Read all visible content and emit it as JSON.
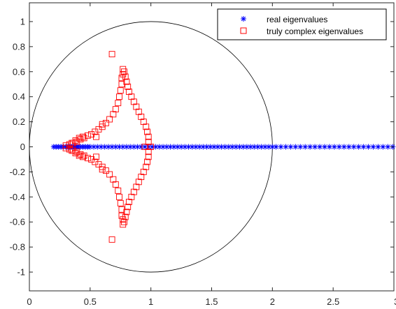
{
  "chart_data": {
    "type": "scatter",
    "title": "",
    "xlabel": "",
    "ylabel": "",
    "xlim": [
      0,
      3
    ],
    "ylim": [
      -1.15,
      1.15
    ],
    "x_ticks": [
      0,
      0.5,
      1,
      1.5,
      2,
      2.5,
      3
    ],
    "x_tick_labels": [
      "0",
      "0.5",
      "1",
      "1.5",
      "2",
      "2.5",
      "3"
    ],
    "y_ticks": [
      1,
      0.8,
      0.6,
      0.4,
      0.2,
      0,
      -0.2,
      -0.4,
      -0.6,
      -0.8,
      -1
    ],
    "y_tick_labels": [
      "1",
      "0.8",
      "0.6",
      "0.4",
      "0.2",
      "0",
      "-0.2",
      "-0.4",
      "-0.6",
      "-0.8",
      "-1"
    ],
    "grid": false,
    "legend_position": "top-right",
    "reference_circle": {
      "center": [
        1,
        0
      ],
      "radius": 1,
      "color": "#000000"
    },
    "series": [
      {
        "name": "real eigenvalues",
        "marker": "asterisk",
        "color": "#0000ff",
        "points": [
          [
            0.2,
            0
          ],
          [
            0.22,
            0
          ],
          [
            0.24,
            0
          ],
          [
            0.26,
            0
          ],
          [
            0.28,
            0
          ],
          [
            0.3,
            0
          ],
          [
            0.31,
            0
          ],
          [
            0.32,
            0
          ],
          [
            0.33,
            0
          ],
          [
            0.34,
            0
          ],
          [
            0.35,
            0
          ],
          [
            0.36,
            0
          ],
          [
            0.37,
            0
          ],
          [
            0.38,
            0
          ],
          [
            0.39,
            0
          ],
          [
            0.4,
            0
          ],
          [
            0.42,
            0
          ],
          [
            0.44,
            0
          ],
          [
            0.46,
            0
          ],
          [
            0.48,
            0
          ],
          [
            0.5,
            0
          ],
          [
            0.53,
            0
          ],
          [
            0.56,
            0
          ],
          [
            0.59,
            0
          ],
          [
            0.62,
            0
          ],
          [
            0.65,
            0
          ],
          [
            0.68,
            0
          ],
          [
            0.71,
            0
          ],
          [
            0.74,
            0
          ],
          [
            0.77,
            0
          ],
          [
            0.8,
            0
          ],
          [
            0.83,
            0
          ],
          [
            0.86,
            0
          ],
          [
            0.89,
            0
          ],
          [
            0.92,
            0
          ],
          [
            0.95,
            0
          ],
          [
            0.98,
            0
          ],
          [
            1.01,
            0
          ],
          [
            1.04,
            0
          ],
          [
            1.07,
            0
          ],
          [
            1.1,
            0
          ],
          [
            1.13,
            0
          ],
          [
            1.16,
            0
          ],
          [
            1.19,
            0
          ],
          [
            1.22,
            0
          ],
          [
            1.25,
            0
          ],
          [
            1.28,
            0
          ],
          [
            1.31,
            0
          ],
          [
            1.34,
            0
          ],
          [
            1.37,
            0
          ],
          [
            1.4,
            0
          ],
          [
            1.43,
            0
          ],
          [
            1.46,
            0
          ],
          [
            1.49,
            0
          ],
          [
            1.52,
            0
          ],
          [
            1.55,
            0
          ],
          [
            1.58,
            0
          ],
          [
            1.61,
            0
          ],
          [
            1.64,
            0
          ],
          [
            1.67,
            0
          ],
          [
            1.7,
            0
          ],
          [
            1.73,
            0
          ],
          [
            1.76,
            0
          ],
          [
            1.79,
            0
          ],
          [
            1.82,
            0
          ],
          [
            1.85,
            0
          ],
          [
            1.88,
            0
          ],
          [
            1.91,
            0
          ],
          [
            1.94,
            0
          ],
          [
            1.97,
            0
          ],
          [
            2.0,
            0
          ],
          [
            2.03,
            0
          ],
          [
            2.07,
            0
          ],
          [
            2.11,
            0
          ],
          [
            2.15,
            0
          ],
          [
            2.19,
            0
          ],
          [
            2.23,
            0
          ],
          [
            2.27,
            0
          ],
          [
            2.31,
            0
          ],
          [
            2.35,
            0
          ],
          [
            2.39,
            0
          ],
          [
            2.43,
            0
          ],
          [
            2.47,
            0
          ],
          [
            2.51,
            0
          ],
          [
            2.55,
            0
          ],
          [
            2.59,
            0
          ],
          [
            2.63,
            0
          ],
          [
            2.67,
            0
          ],
          [
            2.71,
            0
          ],
          [
            2.75,
            0
          ],
          [
            2.79,
            0
          ],
          [
            2.83,
            0
          ],
          [
            2.87,
            0
          ],
          [
            2.91,
            0
          ],
          [
            2.95,
            0
          ],
          [
            2.99,
            0
          ]
        ]
      },
      {
        "name": "truly complex eigenvalues",
        "marker": "square",
        "color": "#ff0000",
        "points": [
          [
            0.3,
            0.01
          ],
          [
            0.33,
            0.02
          ],
          [
            0.36,
            0.03
          ],
          [
            0.39,
            0.04
          ],
          [
            0.42,
            0.06
          ],
          [
            0.45,
            0.07
          ],
          [
            0.48,
            0.09
          ],
          [
            0.51,
            0.1
          ],
          [
            0.54,
            0.12
          ],
          [
            0.57,
            0.14
          ],
          [
            0.6,
            0.16
          ],
          [
            0.63,
            0.19
          ],
          [
            0.66,
            0.22
          ],
          [
            0.69,
            0.26
          ],
          [
            0.71,
            0.3
          ],
          [
            0.73,
            0.35
          ],
          [
            0.74,
            0.4
          ],
          [
            0.75,
            0.45
          ],
          [
            0.76,
            0.5
          ],
          [
            0.76,
            0.55
          ],
          [
            0.77,
            0.58
          ],
          [
            0.77,
            0.62
          ],
          [
            0.78,
            0.6
          ],
          [
            0.79,
            0.56
          ],
          [
            0.8,
            0.52
          ],
          [
            0.81,
            0.48
          ],
          [
            0.82,
            0.44
          ],
          [
            0.84,
            0.4
          ],
          [
            0.86,
            0.36
          ],
          [
            0.88,
            0.32
          ],
          [
            0.9,
            0.28
          ],
          [
            0.92,
            0.24
          ],
          [
            0.94,
            0.2
          ],
          [
            0.96,
            0.16
          ],
          [
            0.97,
            0.12
          ],
          [
            0.98,
            0.08
          ],
          [
            0.98,
            0.04
          ],
          [
            0.68,
            0.74
          ],
          [
            0.6,
            0.18
          ],
          [
            0.55,
            0.08
          ],
          [
            0.35,
            0.03
          ],
          [
            0.38,
            0.05
          ],
          [
            0.41,
            0.07
          ],
          [
            0.44,
            0.08
          ],
          [
            0.3,
            -0.01
          ],
          [
            0.33,
            -0.02
          ],
          [
            0.36,
            -0.03
          ],
          [
            0.39,
            -0.04
          ],
          [
            0.42,
            -0.06
          ],
          [
            0.45,
            -0.07
          ],
          [
            0.48,
            -0.09
          ],
          [
            0.51,
            -0.1
          ],
          [
            0.54,
            -0.12
          ],
          [
            0.57,
            -0.14
          ],
          [
            0.6,
            -0.16
          ],
          [
            0.63,
            -0.19
          ],
          [
            0.66,
            -0.22
          ],
          [
            0.69,
            -0.26
          ],
          [
            0.71,
            -0.3
          ],
          [
            0.73,
            -0.35
          ],
          [
            0.74,
            -0.4
          ],
          [
            0.75,
            -0.45
          ],
          [
            0.76,
            -0.5
          ],
          [
            0.76,
            -0.55
          ],
          [
            0.77,
            -0.58
          ],
          [
            0.77,
            -0.62
          ],
          [
            0.78,
            -0.6
          ],
          [
            0.79,
            -0.56
          ],
          [
            0.8,
            -0.52
          ],
          [
            0.81,
            -0.48
          ],
          [
            0.82,
            -0.44
          ],
          [
            0.84,
            -0.4
          ],
          [
            0.86,
            -0.36
          ],
          [
            0.88,
            -0.32
          ],
          [
            0.9,
            -0.28
          ],
          [
            0.92,
            -0.24
          ],
          [
            0.94,
            -0.2
          ],
          [
            0.96,
            -0.16
          ],
          [
            0.97,
            -0.12
          ],
          [
            0.98,
            -0.08
          ],
          [
            0.98,
            -0.04
          ],
          [
            0.68,
            -0.74
          ],
          [
            0.6,
            -0.18
          ],
          [
            0.55,
            -0.08
          ],
          [
            0.35,
            -0.03
          ],
          [
            0.38,
            -0.05
          ],
          [
            0.41,
            -0.07
          ],
          [
            0.44,
            -0.08
          ],
          [
            0.95,
            0.0
          ],
          [
            1.0,
            0.0
          ]
        ]
      }
    ]
  }
}
